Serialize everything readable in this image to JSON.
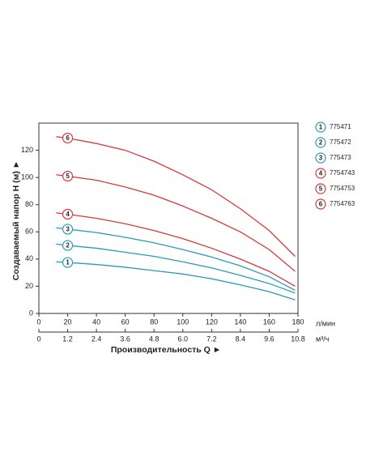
{
  "chart_data": {
    "type": "line",
    "ylabel": "Создаваемый напор H (м) ►",
    "xlabel": "Производительность Q ►",
    "x_unit": "л/мин",
    "x2_unit": "м³/ч",
    "x": [
      12,
      20,
      40,
      60,
      80,
      100,
      120,
      140,
      160,
      178
    ],
    "xlim": [
      0,
      180
    ],
    "xticks": [
      0,
      20,
      40,
      60,
      80,
      100,
      120,
      140,
      160,
      180
    ],
    "x2lim": [
      0,
      10.8
    ],
    "x2ticks": [
      0,
      1.2,
      2.4,
      3.6,
      4.8,
      {
        "value": 6,
        "label": "6.0"
      },
      7.2,
      8.4,
      9.6,
      10.8
    ],
    "ylim": [
      0,
      140
    ],
    "yticks": [
      0,
      20,
      40,
      60,
      80,
      100,
      120
    ],
    "grid": false,
    "legend": "right",
    "series": [
      {
        "name": "775471",
        "label": "1",
        "color": "#2a9bb5",
        "values": [
          38,
          37.5,
          36,
          34,
          31.5,
          29,
          25.5,
          21,
          16,
          10
        ]
      },
      {
        "name": "775472",
        "label": "2",
        "color": "#2a9bb5",
        "values": [
          51,
          50,
          48,
          45,
          42,
          38,
          33.5,
          28,
          22,
          15
        ]
      },
      {
        "name": "775473",
        "label": "3",
        "color": "#2a9bb5",
        "values": [
          63,
          62,
          59.5,
          56,
          52,
          47,
          41.5,
          35,
          27,
          17
        ]
      },
      {
        "name": "7754743",
        "label": "4",
        "color": "#d9383a",
        "values": [
          74,
          73,
          70,
          66,
          61,
          55,
          48,
          40,
          31,
          20
        ]
      },
      {
        "name": "7754753",
        "label": "5",
        "color": "#d9383a",
        "values": [
          102,
          101,
          98,
          93,
          87,
          79,
          70,
          60,
          47,
          31
        ]
      },
      {
        "name": "7754763",
        "label": "6",
        "color": "#d9383a",
        "values": [
          130,
          129,
          125,
          120,
          112,
          102,
          91,
          77,
          61,
          42
        ]
      }
    ]
  }
}
